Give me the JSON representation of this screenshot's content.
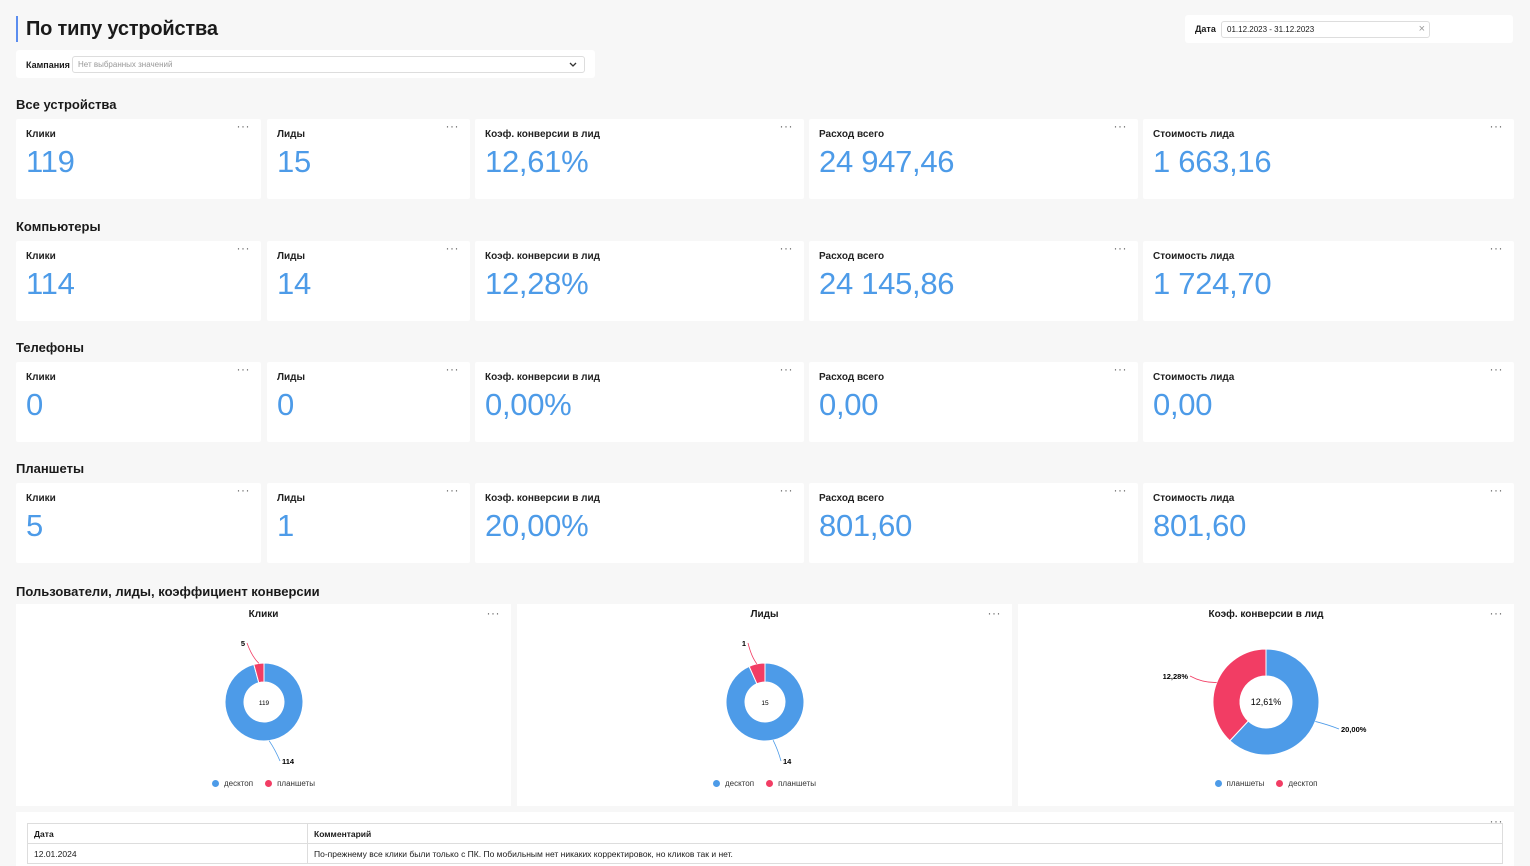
{
  "page_title": "По типу устройства",
  "date_filter": {
    "label": "Дата",
    "value": "01.12.2023 - 31.12.2023",
    "clear_icon": "×"
  },
  "campaign_filter": {
    "label": "Кампания",
    "placeholder": "Нет выбранных значений"
  },
  "menu_icon": "···",
  "sections": [
    {
      "title": "Все устройства",
      "cards": [
        {
          "label": "Клики",
          "value": "119"
        },
        {
          "label": "Лиды",
          "value": "15"
        },
        {
          "label": "Коэф. конверсии в лид",
          "value": "12,61%"
        },
        {
          "label": "Расход всего",
          "value": "24 947,46"
        },
        {
          "label": "Стоимость лида",
          "value": "1 663,16"
        }
      ]
    },
    {
      "title": "Компьютеры",
      "cards": [
        {
          "label": "Клики",
          "value": "114"
        },
        {
          "label": "Лиды",
          "value": "14"
        },
        {
          "label": "Коэф. конверсии в лид",
          "value": "12,28%"
        },
        {
          "label": "Расход всего",
          "value": "24 145,86"
        },
        {
          "label": "Стоимость лида",
          "value": "1 724,70"
        }
      ]
    },
    {
      "title": "Телефоны",
      "cards": [
        {
          "label": "Клики",
          "value": "0"
        },
        {
          "label": "Лиды",
          "value": "0"
        },
        {
          "label": "Коэф. конверсии в лид",
          "value": "0,00%"
        },
        {
          "label": "Расход всего",
          "value": "0,00"
        },
        {
          "label": "Стоимость лида",
          "value": "0,00"
        }
      ]
    },
    {
      "title": "Планшеты",
      "cards": [
        {
          "label": "Клики",
          "value": "5"
        },
        {
          "label": "Лиды",
          "value": "1"
        },
        {
          "label": "Коэф. конверсии в лид",
          "value": "20,00%"
        },
        {
          "label": "Расход всего",
          "value": "801,60"
        },
        {
          "label": "Стоимость лида",
          "value": "801,60"
        }
      ]
    }
  ],
  "charts_section_title": "Пользователи, лиды, коэффициент конверсии",
  "colors": {
    "blue": "#4d9be8",
    "red": "#f23d64"
  },
  "chart_data": [
    {
      "type": "pie",
      "title": "Клики",
      "center_label": "119",
      "slices": [
        {
          "name": "десктоп",
          "value": 114,
          "label": "114",
          "color": "#4d9be8"
        },
        {
          "name": "планшеты",
          "value": 5,
          "label": "5",
          "color": "#f23d64"
        }
      ]
    },
    {
      "type": "pie",
      "title": "Лиды",
      "center_label": "15",
      "slices": [
        {
          "name": "десктоп",
          "value": 14,
          "label": "14",
          "color": "#4d9be8"
        },
        {
          "name": "планшеты",
          "value": 1,
          "label": "1",
          "color": "#f23d64"
        }
      ]
    },
    {
      "type": "pie",
      "title": "Коэф. конверсии в лид",
      "center_label": "12,61%",
      "slices": [
        {
          "name": "планшеты",
          "value": 20.0,
          "label": "20,00%",
          "color": "#4d9be8"
        },
        {
          "name": "десктоп",
          "value": 12.28,
          "label": "12,28%",
          "color": "#f23d64"
        }
      ]
    }
  ],
  "table": {
    "headers": [
      "Дата",
      "Комментарий"
    ],
    "rows": [
      [
        "12.01.2024",
        "По-прежнему все клики были только с ПК. По мобильным нет никаких корректировок, но кликов так и нет."
      ]
    ]
  }
}
